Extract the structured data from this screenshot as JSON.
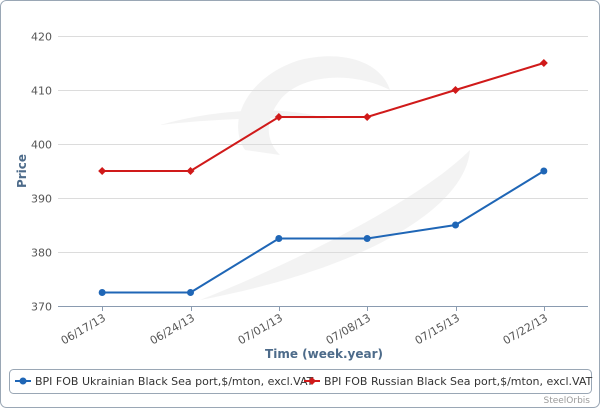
{
  "chart_data": {
    "type": "line",
    "title": "",
    "xlabel": "Time (week.year)",
    "ylabel": "Price",
    "categories": [
      "06/17/13",
      "06/24/13",
      "07/01/13",
      "07/08/13",
      "07/15/13",
      "07/22/13"
    ],
    "ylim": [
      370,
      420
    ],
    "yticks": [
      370,
      380,
      390,
      400,
      410,
      420
    ],
    "grid": true,
    "legend_position": "bottom",
    "series": [
      {
        "name": "BPI FOB Ukrainian Black Sea port,$/mton, excl.VAT",
        "color": "#1f66b6",
        "marker": "circle",
        "values": [
          372.5,
          372.5,
          382.5,
          382.5,
          385,
          395
        ]
      },
      {
        "name": "BPI FOB Russian Black Sea port,$/mton, excl.VAT",
        "color": "#d01a1a",
        "marker": "diamond",
        "values": [
          395,
          395,
          405,
          405,
          410,
          415
        ]
      }
    ],
    "credit": "SteelOrbis"
  }
}
